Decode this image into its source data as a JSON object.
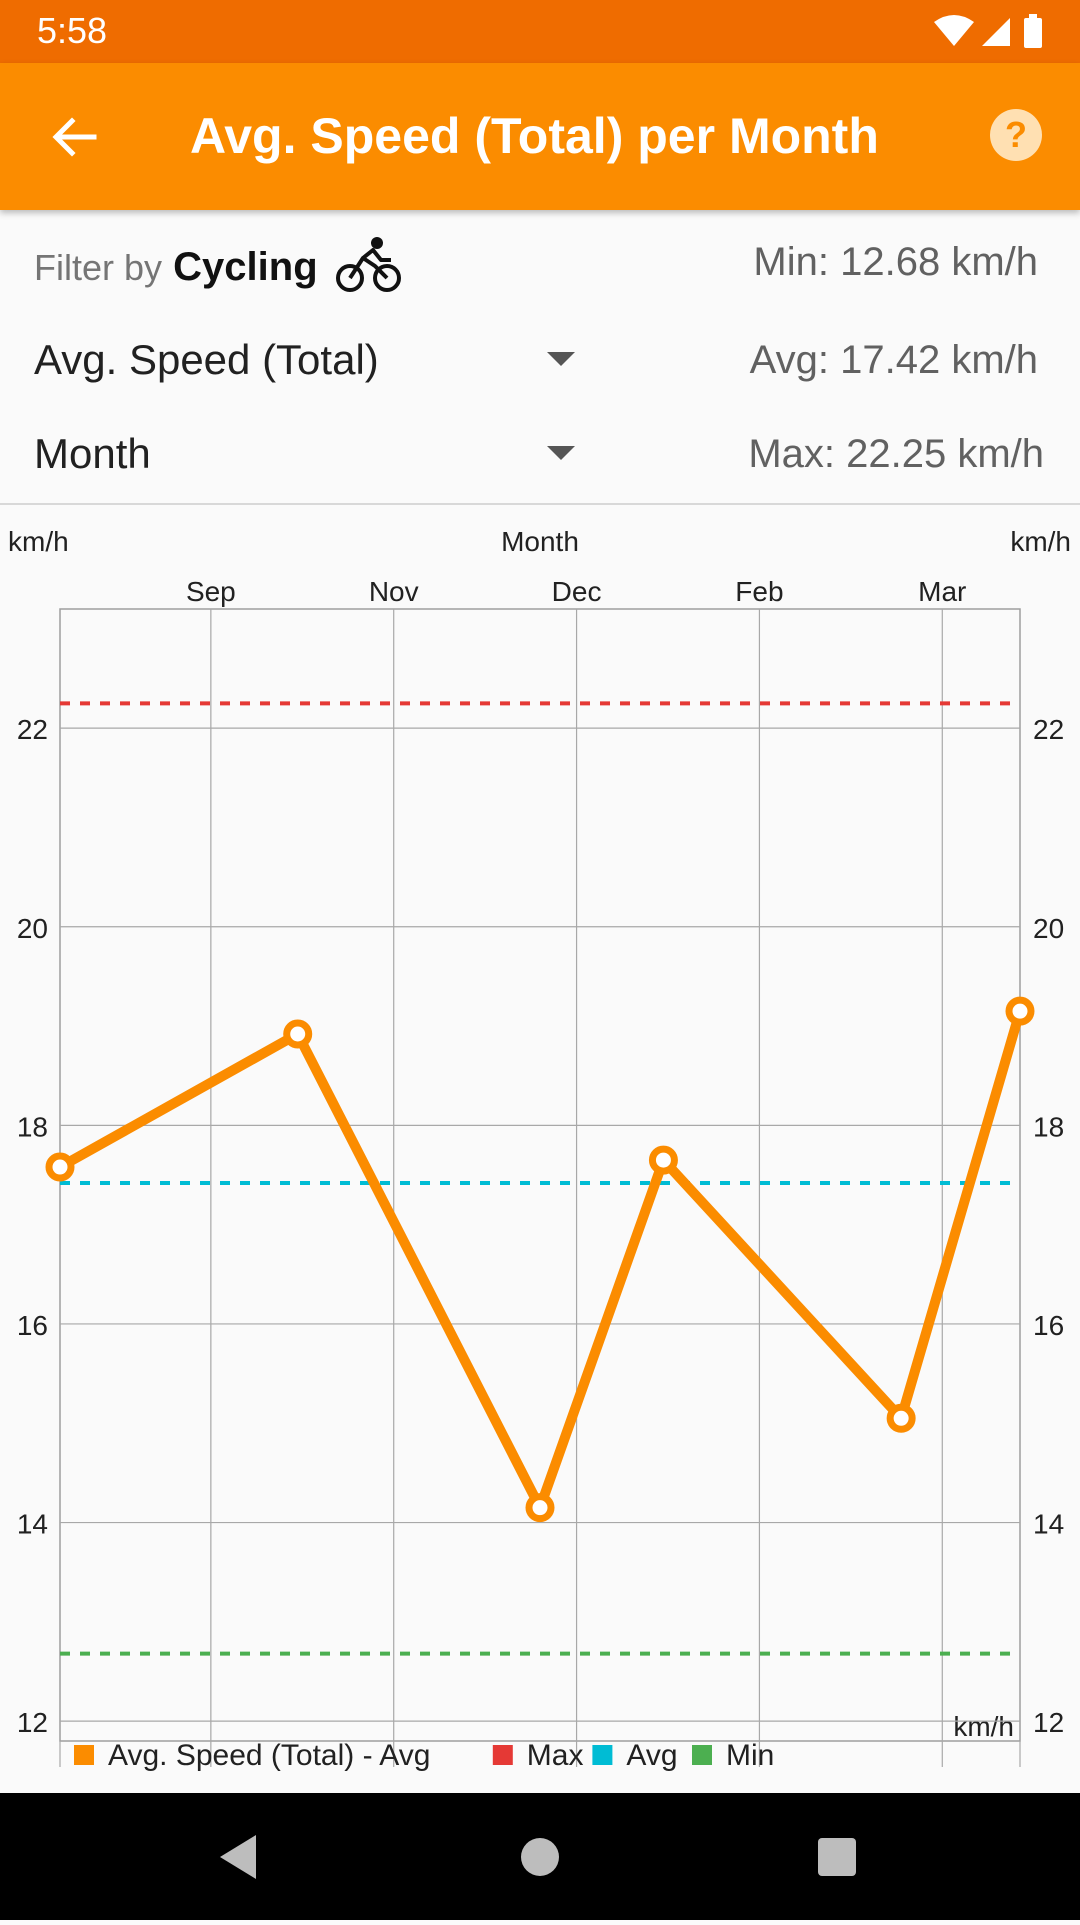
{
  "status_bar": {
    "time": "5:58"
  },
  "app_bar": {
    "title": "Avg. Speed (Total) per Month",
    "back_icon": "arrow-back-icon",
    "help_icon": "help-circle-icon"
  },
  "filter": {
    "prefix": "Filter by",
    "value": "Cycling",
    "icon": "bicycle-icon"
  },
  "dropdowns": {
    "metric": "Avg. Speed (Total)",
    "period": "Month"
  },
  "stats": {
    "min": "Min: 12.68 km/h",
    "avg": "Avg: 17.42 km/h",
    "max": "Max: 22.25 km/h"
  },
  "colors": {
    "accent": "#fb8c00",
    "status_bar": "#ef6c00",
    "series": "#fb8c00",
    "max_line": "#e53935",
    "avg_line": "#00bcd4",
    "min_line": "#4caf50"
  },
  "chart_data": {
    "type": "line",
    "title": "Month",
    "ylabel_left": "km/h",
    "ylabel_right": "km/h",
    "ylabel_bottom_right": "km/h",
    "ylim": [
      11.8,
      23.2
    ],
    "yticks": [
      12,
      14,
      16,
      18,
      20,
      22
    ],
    "grid": true,
    "legend_position": "bottom-left",
    "x_month_labels": [
      {
        "label": "Sep",
        "x": 1.65
      },
      {
        "label": "Nov",
        "x": 3.65
      },
      {
        "label": "Dec",
        "x": 5.65
      },
      {
        "label": "Feb",
        "x": 7.65
      },
      {
        "label": "Mar",
        "x": 9.65
      }
    ],
    "xlim": [
      0,
      10.5
    ],
    "series": [
      {
        "name": "Avg. Speed (Total) - Avg",
        "x": [
          0,
          2.6,
          5.25,
          6.6,
          9.2,
          10.5
        ],
        "values": [
          17.58,
          18.92,
          14.15,
          17.65,
          15.05,
          19.15
        ]
      }
    ],
    "reference_lines": [
      {
        "name": "Max",
        "value": 22.25
      },
      {
        "name": "Avg",
        "value": 17.42
      },
      {
        "name": "Min",
        "value": 12.68
      }
    ],
    "legend": [
      "Avg. Speed (Total) - Avg",
      "Max",
      "Avg",
      "Min"
    ]
  }
}
